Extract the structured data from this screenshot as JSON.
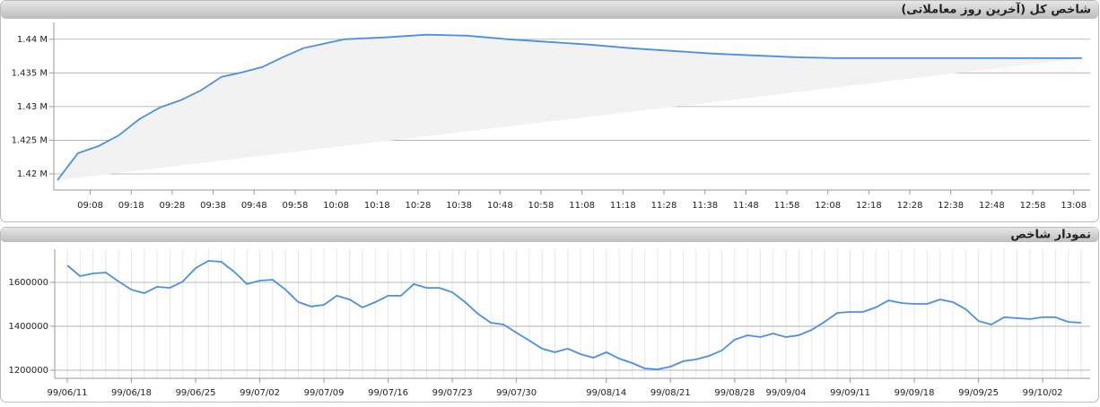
{
  "chart_data": [
    {
      "type": "line",
      "title": "شاخص کل (آخرین روز معاملاتی)",
      "x": [
        "09:00",
        "09:05",
        "09:10",
        "09:15",
        "09:20",
        "09:25",
        "09:30",
        "09:35",
        "09:40",
        "09:45",
        "09:50",
        "09:55",
        "10:00",
        "10:05",
        "10:10",
        "10:20",
        "10:30",
        "10:40",
        "10:50",
        "11:00",
        "11:10",
        "11:20",
        "11:30",
        "11:40",
        "11:50",
        "12:00",
        "12:10",
        "12:20",
        "12:30",
        "12:40",
        "12:50",
        "13:00",
        "13:10"
      ],
      "series": [
        {
          "color": "#4a90e2",
          "values": [
            1419070,
            1423070,
            1424130,
            1425730,
            1428130,
            1429870,
            1430930,
            1432400,
            1434400,
            1435070,
            1435870,
            1437330,
            1438670,
            1439330,
            1440000,
            1440270,
            1440670,
            1440530,
            1440000,
            1439600,
            1439200,
            1438670,
            1438270,
            1437870,
            1437600,
            1437330,
            1437200,
            1437200,
            1437200,
            1437200,
            1437200,
            1437200,
            1437200
          ]
        }
      ],
      "xlim": [
        "09:00",
        "13:12"
      ],
      "xticks": [
        "09:08",
        "09:18",
        "09:28",
        "09:38",
        "09:48",
        "09:58",
        "10:08",
        "10:18",
        "10:28",
        "10:38",
        "10:48",
        "10:58",
        "11:08",
        "11:18",
        "11:28",
        "11:38",
        "11:48",
        "11:58",
        "12:08",
        "12:18",
        "12:28",
        "12:38",
        "12:48",
        "12:58",
        "13:08"
      ],
      "ylim": [
        1417600,
        1442500
      ],
      "yticks": [
        {
          "value": 1420000,
          "label": "1.42 M"
        },
        {
          "value": 1425000,
          "label": "1.425 M"
        },
        {
          "value": 1430000,
          "label": "1.43 M"
        },
        {
          "value": 1435000,
          "label": "1.435 M"
        },
        {
          "value": 1440000,
          "label": "1.44 M"
        }
      ],
      "grid": true
    },
    {
      "type": "line",
      "title": "نمودار شاخص",
      "categories": [
        "99/06/11",
        null,
        null,
        null,
        null,
        "99/06/18",
        null,
        null,
        null,
        null,
        "99/06/25",
        null,
        null,
        null,
        null,
        "99/07/02",
        null,
        null,
        null,
        null,
        "99/07/09",
        null,
        null,
        null,
        null,
        "99/07/16",
        null,
        null,
        null,
        null,
        "99/07/23",
        null,
        null,
        null,
        null,
        "99/07/30",
        null,
        null,
        null,
        null,
        null,
        null,
        "99/08/14",
        null,
        null,
        null,
        null,
        "99/08/21",
        null,
        null,
        null,
        null,
        "99/08/28",
        null,
        null,
        null,
        "99/09/04",
        null,
        null,
        null,
        null,
        "99/09/11",
        null,
        null,
        null,
        null,
        "99/09/18",
        null,
        null,
        null,
        null,
        "99/09/25",
        null,
        null,
        null,
        null,
        "99/10/02",
        null,
        null,
        null
      ],
      "series": [
        {
          "color": "#4a90e2",
          "values": [
            1677600,
            1628600,
            1640900,
            1645000,
            1604000,
            1567000,
            1551000,
            1580000,
            1575000,
            1604000,
            1665000,
            1698000,
            1694000,
            1649000,
            1592000,
            1608000,
            1612000,
            1567000,
            1510000,
            1490000,
            1498000,
            1539000,
            1522000,
            1486000,
            1510000,
            1539000,
            1539000,
            1592000,
            1575000,
            1575000,
            1555000,
            1510000,
            1457000,
            1416000,
            1408000,
            1371000,
            1335000,
            1298000,
            1282000,
            1298000,
            1273000,
            1257000,
            1282000,
            1253000,
            1233000,
            1208000,
            1204000,
            1216000,
            1241000,
            1249000,
            1265000,
            1290000,
            1339000,
            1359000,
            1351000,
            1367000,
            1351000,
            1359000,
            1384000,
            1420000,
            1461000,
            1465000,
            1465000,
            1486000,
            1518000,
            1506000,
            1502000,
            1502000,
            1522000,
            1510000,
            1478000,
            1424000,
            1408000,
            1441000,
            1437000,
            1433000,
            1441000,
            1441000,
            1420000,
            1416000
          ]
        }
      ],
      "ylim": [
        1163000,
        1751000
      ],
      "yticks": [
        1200000,
        1400000,
        1600000
      ],
      "grid": true
    }
  ]
}
